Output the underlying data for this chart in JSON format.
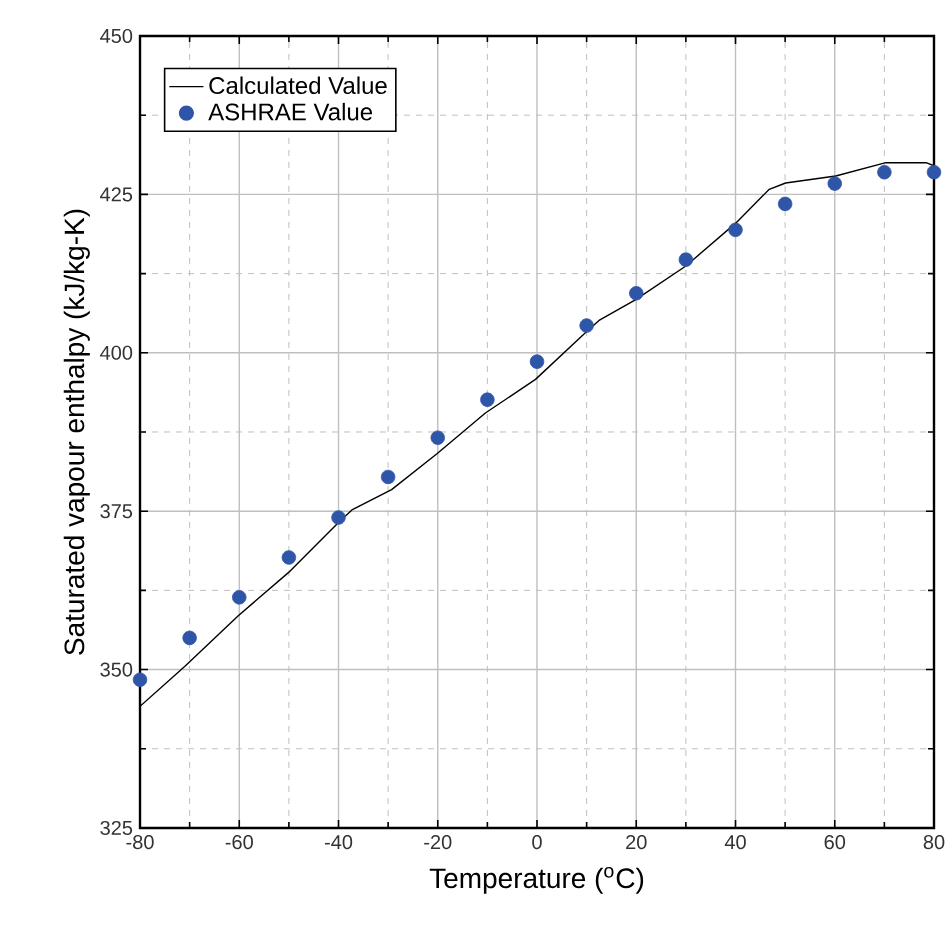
{
  "chart_data": {
    "type": "line",
    "xlabel": "Temperature ($^{o}$C)",
    "ylabel": "Saturated vapour enthalpy (kJ/kg-K)",
    "xlim": [
      -80,
      80
    ],
    "ylim": [
      325,
      450
    ],
    "xticks": [
      -80,
      -60,
      -40,
      -20,
      0,
      20,
      40,
      60,
      80
    ],
    "yticks": [
      325,
      350,
      375,
      400,
      425,
      450
    ],
    "grid": true,
    "legend": "top left",
    "series": [
      {
        "name": "Calculated Value",
        "color": "#000000",
        "marker": "none",
        "line_style": "solid",
        "x": [
          -80,
          -71,
          -60.2,
          -50.1,
          -40,
          -37.3,
          -29.3,
          -20.1,
          -10.4,
          -0.3,
          9.8,
          12.5,
          19.9,
          30,
          40.1,
          46.8,
          50.1,
          60.2,
          70.3,
          78.4,
          80
        ],
        "values": [
          344.2,
          350.5,
          358.5,
          365.3,
          373.2,
          375.2,
          378.4,
          384.1,
          390.5,
          395.8,
          403.2,
          405.1,
          408.4,
          413.7,
          420.5,
          425.8,
          426.8,
          427.9,
          430.0,
          430.0,
          429.5
        ]
      },
      {
        "name": "ASHRAE Value",
        "type": "scatter",
        "color": "#2e55a8",
        "marker": "circle",
        "x": [
          -80,
          -70,
          -60,
          -50,
          -40,
          -30,
          -20,
          -10,
          0,
          10,
          20,
          30,
          40,
          50,
          60,
          70,
          80
        ],
        "values": [
          348.4,
          355,
          361.4,
          367.7,
          374,
          380.4,
          386.6,
          392.6,
          398.6,
          404.3,
          409.4,
          414.7,
          419.4,
          423.5,
          426.7,
          428.5,
          428.5
        ]
      }
    ]
  }
}
